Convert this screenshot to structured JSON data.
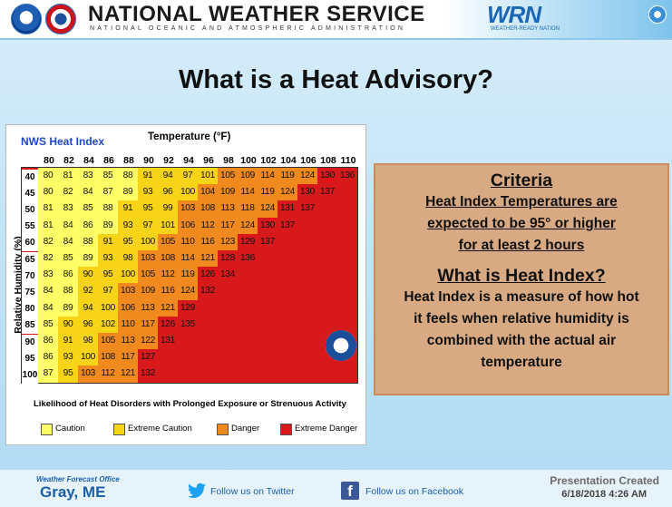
{
  "header": {
    "title": "NATIONAL WEATHER SERVICE",
    "subtitle": "NATIONAL OCEANIC AND ATMOSPHERIC ADMINISTRATION",
    "wrn_logo_text": "WRN",
    "wrn_logo_sub": "WEATHER-READY NATION"
  },
  "slide_title": "What is a Heat Advisory?",
  "chart": {
    "title": "NWS Heat Index",
    "temperature_label": "Temperature (°F)",
    "rh_label": "Relative Humidity (%)",
    "likelihood_label": "Likelihood of Heat Disorders with Prolonged Exposure or Strenuous Activity",
    "temperatures": [
      "80",
      "82",
      "84",
      "86",
      "88",
      "90",
      "92",
      "94",
      "96",
      "98",
      "100",
      "102",
      "104",
      "106",
      "108",
      "110"
    ],
    "humidities": [
      "40",
      "45",
      "50",
      "55",
      "60",
      "65",
      "70",
      "75",
      "80",
      "85",
      "90",
      "95",
      "100"
    ],
    "rows": [
      [
        "80",
        "81",
        "83",
        "85",
        "88",
        "91",
        "94",
        "97",
        "101",
        "105",
        "109",
        "114",
        "119",
        "124",
        "130",
        "136"
      ],
      [
        "80",
        "82",
        "84",
        "87",
        "89",
        "93",
        "96",
        "100",
        "104",
        "109",
        "114",
        "119",
        "124",
        "130",
        "137",
        ""
      ],
      [
        "81",
        "83",
        "85",
        "88",
        "91",
        "95",
        "99",
        "103",
        "108",
        "113",
        "118",
        "124",
        "131",
        "137",
        "",
        ""
      ],
      [
        "81",
        "84",
        "86",
        "89",
        "93",
        "97",
        "101",
        "106",
        "112",
        "117",
        "124",
        "130",
        "137",
        "",
        "",
        ""
      ],
      [
        "82",
        "84",
        "88",
        "91",
        "95",
        "100",
        "105",
        "110",
        "116",
        "123",
        "129",
        "137",
        "",
        "",
        "",
        ""
      ],
      [
        "82",
        "85",
        "89",
        "93",
        "98",
        "103",
        "108",
        "114",
        "121",
        "128",
        "136",
        "",
        "",
        "",
        "",
        ""
      ],
      [
        "83",
        "86",
        "90",
        "95",
        "100",
        "105",
        "112",
        "119",
        "126",
        "134",
        "",
        "",
        "",
        "",
        "",
        ""
      ],
      [
        "84",
        "88",
        "92",
        "97",
        "103",
        "109",
        "116",
        "124",
        "132",
        "",
        "",
        "",
        "",
        "",
        "",
        ""
      ],
      [
        "84",
        "89",
        "94",
        "100",
        "106",
        "113",
        "121",
        "129",
        "",
        "",
        "",
        "",
        "",
        "",
        "",
        ""
      ],
      [
        "85",
        "90",
        "96",
        "102",
        "110",
        "117",
        "126",
        "135",
        "",
        "",
        "",
        "",
        "",
        "",
        "",
        ""
      ],
      [
        "86",
        "91",
        "98",
        "105",
        "113",
        "122",
        "131",
        "",
        "",
        "",
        "",
        "",
        "",
        "",
        "",
        ""
      ],
      [
        "86",
        "93",
        "100",
        "108",
        "117",
        "127",
        "",
        "",
        "",
        "",
        "",
        "",
        "",
        "",
        "",
        ""
      ],
      [
        "87",
        "95",
        "103",
        "112",
        "121",
        "132",
        "",
        "",
        "",
        "",
        "",
        "",
        "",
        "",
        "",
        ""
      ]
    ],
    "legend": [
      {
        "label": "Caution",
        "color": "#ffff66"
      },
      {
        "label": "Extreme Caution",
        "color": "#f7d417"
      },
      {
        "label": "Danger",
        "color": "#f08a1e"
      },
      {
        "label": "Extreme Danger",
        "color": "#d7191c"
      }
    ]
  },
  "criteria": {
    "heading": "Criteria",
    "lines": [
      "Heat Index Temperatures are",
      "expected to be 95° or higher",
      "for at least 2 hours"
    ],
    "heading2": "What is Heat Index?",
    "definition": [
      "Heat Index is a measure of how hot",
      "it feels when relative humidity is",
      "combined with the actual air",
      "temperature"
    ]
  },
  "footer": {
    "wfo_label": "Weather Forecast Office",
    "wfo_name": "Gray, ME",
    "twitter": "Follow us on Twitter",
    "facebook": "Follow us on Facebook",
    "presentation_created": "Presentation Created",
    "date": "6/18/2018 4:26 AM"
  }
}
